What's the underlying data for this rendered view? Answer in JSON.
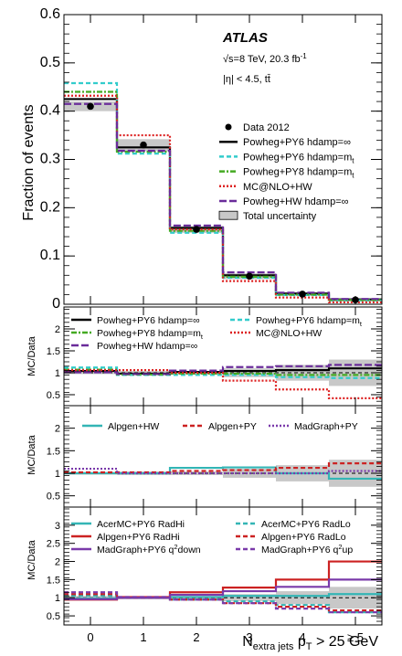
{
  "chart_data": [
    {
      "type": "step",
      "panel": "main",
      "ylabel": "Fraction of events",
      "ylim": [
        0,
        0.6
      ],
      "yticks": [
        0,
        0.1,
        0.2,
        0.3,
        0.4,
        0.5,
        0.6
      ],
      "categories": [
        "0",
        "1",
        "2",
        "3",
        "4",
        "≥ 5"
      ],
      "annotations": {
        "experiment": "ATLAS",
        "energy": "√s=8 TeV, 20.3 fb",
        "energy_sup": "-1",
        "selection": "|η| < 4.5, tt̄"
      },
      "data": {
        "name": "Data 2012",
        "values": [
          0.41,
          0.33,
          0.155,
          0.058,
          0.021,
          0.009
        ]
      },
      "series": [
        {
          "name": "Powheg+PY6 hdamp=∞",
          "color": "#000000",
          "dash": "solid",
          "values": [
            0.425,
            0.325,
            0.158,
            0.06,
            0.022,
            0.01
          ]
        },
        {
          "name": "Powheg+PY6 hdamp=m",
          "sub": "t",
          "color": "#33cccc",
          "dash": "dashed",
          "values": [
            0.458,
            0.312,
            0.148,
            0.055,
            0.019,
            0.008
          ]
        },
        {
          "name": "Powheg+PY8 hdamp=m",
          "sub": "t",
          "color": "#44aa22",
          "dash": "dashdot",
          "values": [
            0.44,
            0.316,
            0.152,
            0.057,
            0.02,
            0.009
          ]
        },
        {
          "name": "MC@NLO+HW",
          "color": "#dd2222",
          "dash": "dotted",
          "values": [
            0.432,
            0.35,
            0.155,
            0.048,
            0.014,
            0.004
          ]
        },
        {
          "name": "Powheg+HW hdamp=∞",
          "color": "#6a2c9a",
          "dash": "longdash",
          "values": [
            0.415,
            0.318,
            0.163,
            0.066,
            0.024,
            0.011
          ]
        }
      ],
      "uncertainty": {
        "name": "Total uncertainty",
        "lo": [
          0.4,
          0.318,
          0.148,
          0.052,
          0.017,
          0.006
        ],
        "hi": [
          0.42,
          0.342,
          0.162,
          0.064,
          0.025,
          0.012
        ]
      }
    },
    {
      "type": "ratio",
      "panel": "ratio1",
      "ylabel": "MC/Data",
      "ylim": [
        0.25,
        2.5
      ],
      "yticks": [
        0.5,
        1,
        1.5,
        2
      ],
      "band": {
        "lo": [
          0.97,
          0.96,
          0.96,
          0.9,
          0.82,
          0.7
        ],
        "hi": [
          1.03,
          1.04,
          1.04,
          1.1,
          1.18,
          1.3
        ]
      },
      "legend": [
        {
          "name": "Powheg+PY6 hdamp=∞",
          "color": "#000000",
          "dash": "solid"
        },
        {
          "name": "Powheg+PY6 hdamp=m",
          "sub": "t",
          "color": "#33cccc",
          "dash": "dashed"
        },
        {
          "name": "Powheg+PY8 hdamp=m",
          "sub": "t",
          "color": "#44aa22",
          "dash": "dashdot"
        },
        {
          "name": "MC@NLO+HW",
          "color": "#dd2222",
          "dash": "dotted"
        },
        {
          "name": "Powheg+HW hdamp=∞",
          "color": "#6a2c9a",
          "dash": "longdash"
        }
      ],
      "series": [
        {
          "name": "Powheg+PY6 hdamp=∞",
          "color": "#000000",
          "dash": "solid",
          "values": [
            1.04,
            0.98,
            1.02,
            1.04,
            1.06,
            1.1
          ]
        },
        {
          "name": "Powheg+PY6 hdamp=m",
          "color": "#33cccc",
          "dash": "dashed",
          "values": [
            1.12,
            0.95,
            0.95,
            0.95,
            0.9,
            0.88
          ]
        },
        {
          "name": "Powheg+PY8 hdamp=m",
          "color": "#44aa22",
          "dash": "dashdot",
          "values": [
            1.07,
            0.96,
            0.98,
            0.98,
            0.95,
            0.95
          ]
        },
        {
          "name": "MC@NLO+HW",
          "color": "#dd2222",
          "dash": "dotted",
          "values": [
            1.06,
            1.06,
            1.0,
            0.82,
            0.62,
            0.42
          ]
        },
        {
          "name": "Powheg+HW hdamp=∞",
          "color": "#6a2c9a",
          "dash": "longdash",
          "values": [
            1.01,
            0.97,
            1.05,
            1.13,
            1.15,
            1.18
          ]
        }
      ]
    },
    {
      "type": "ratio",
      "panel": "ratio2",
      "ylabel": "MC/Data",
      "ylim": [
        0.25,
        2.5
      ],
      "yticks": [
        0.5,
        1,
        1.5,
        2
      ],
      "band": {
        "lo": [
          0.97,
          0.96,
          0.96,
          0.9,
          0.82,
          0.7
        ],
        "hi": [
          1.03,
          1.04,
          1.04,
          1.1,
          1.18,
          1.3
        ]
      },
      "legend": [
        {
          "name": "Alpgen+HW",
          "color": "#33b5b5",
          "dash": "solid"
        },
        {
          "name": "Alpgen+PY",
          "color": "#cc2222",
          "dash": "dashed"
        },
        {
          "name": "MadGraph+PY",
          "color": "#7a3aaa",
          "dash": "dotted"
        }
      ],
      "series": [
        {
          "name": "Alpgen+HW",
          "color": "#33b5b5",
          "dash": "solid",
          "values": [
            1.0,
            1.0,
            1.12,
            1.13,
            1.0,
            0.88
          ]
        },
        {
          "name": "Alpgen+PY",
          "color": "#cc2222",
          "dash": "dashed",
          "values": [
            1.02,
            1.02,
            1.05,
            1.07,
            1.12,
            1.22
          ]
        },
        {
          "name": "MadGraph+PY",
          "color": "#7a3aaa",
          "dash": "dotted",
          "values": [
            1.1,
            1.0,
            1.0,
            1.0,
            1.0,
            1.05
          ]
        }
      ]
    },
    {
      "type": "ratio",
      "panel": "ratio3",
      "ylabel": "MC/Data",
      "ylim": [
        0.25,
        3.5
      ],
      "yticks": [
        0.5,
        1,
        1.5,
        2,
        2.5,
        3
      ],
      "band": {
        "lo": [
          0.95,
          0.96,
          0.96,
          0.9,
          0.82,
          0.7
        ],
        "hi": [
          1.05,
          1.04,
          1.04,
          1.1,
          1.18,
          1.3
        ]
      },
      "legend": [
        {
          "name": "AcerMC+PY6 RadHi",
          "color": "#33b5b5",
          "dash": "solid"
        },
        {
          "name": "AcerMC+PY6 RadLo",
          "color": "#33b5b5",
          "dash": "dashed"
        },
        {
          "name": "Alpgen+PY6 RadHi",
          "color": "#cc2222",
          "dash": "solid"
        },
        {
          "name": "Alpgen+PY6 RadLo",
          "color": "#cc2222",
          "dash": "dashed"
        },
        {
          "name": "MadGraph+PY6 q",
          "sup": "2",
          "suffix": "down",
          "color": "#7a3aaa",
          "dash": "solid"
        },
        {
          "name": "MadGraph+PY6 q",
          "sup": "2",
          "suffix": "up",
          "color": "#7a3aaa",
          "dash": "dashed"
        }
      ],
      "series": [
        {
          "name": "AcerMC+PY6 RadHi",
          "color": "#33b5b5",
          "dash": "solid",
          "values": [
            0.98,
            1.0,
            1.02,
            1.05,
            1.05,
            1.1
          ]
        },
        {
          "name": "AcerMC+PY6 RadLo",
          "color": "#33b5b5",
          "dash": "dashed",
          "values": [
            1.06,
            1.0,
            0.95,
            0.9,
            0.8,
            0.6
          ]
        },
        {
          "name": "Alpgen+PY6 RadHi",
          "color": "#cc2222",
          "dash": "solid",
          "values": [
            0.95,
            1.02,
            1.15,
            1.28,
            1.5,
            2.0
          ]
        },
        {
          "name": "Alpgen+PY6 RadLo",
          "color": "#cc2222",
          "dash": "dashed",
          "values": [
            1.1,
            1.0,
            0.95,
            0.85,
            0.75,
            0.65
          ]
        },
        {
          "name": "MadGraph+PY6 q2 down",
          "color": "#7a3aaa",
          "dash": "solid",
          "values": [
            0.96,
            1.0,
            1.08,
            1.18,
            1.3,
            1.5
          ]
        },
        {
          "name": "MadGraph+PY6 q2 up",
          "color": "#7a3aaa",
          "dash": "dashed",
          "values": [
            1.15,
            1.02,
            0.95,
            0.85,
            0.7,
            0.6
          ]
        }
      ]
    }
  ],
  "xaxis": {
    "label": "N",
    "label_sub": "extra jets",
    "label_mid": " p",
    "label_sub2": "T",
    "label_end": " > 25 GeV"
  }
}
